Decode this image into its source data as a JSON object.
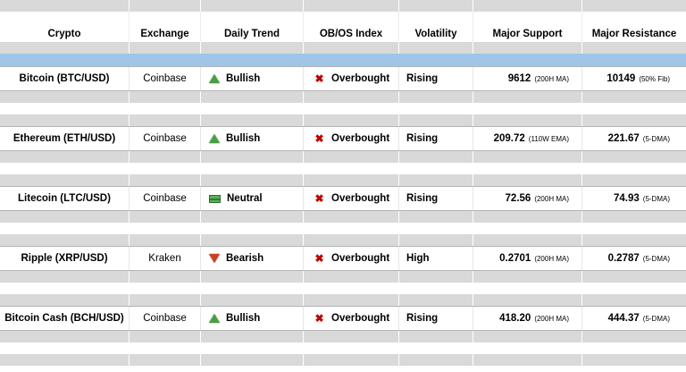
{
  "table": {
    "columns": [
      "Crypto",
      "Exchange",
      "Daily Trend",
      "OB/OS Index",
      "Volatility",
      "Major Support",
      "Major Resistance"
    ],
    "rows": [
      {
        "crypto": "Bitcoin (BTC/USD)",
        "exchange": "Coinbase",
        "trend": "Bullish",
        "trend_icon": "triangle-up-icon",
        "obos": "Overbought",
        "obos_icon": "red-x-icon",
        "volatility": "Rising",
        "support": "9612",
        "support_note": "(200H MA)",
        "resistance": "10149",
        "resistance_note": "(50% Fib)"
      },
      {
        "crypto": "Ethereum (ETH/USD)",
        "exchange": "Coinbase",
        "trend": "Bullish",
        "trend_icon": "triangle-up-icon",
        "obos": "Overbought",
        "obos_icon": "red-x-icon",
        "volatility": "Rising",
        "support": "209.72",
        "support_note": "(110W EMA)",
        "resistance": "221.67",
        "resistance_note": "(5-DMA)"
      },
      {
        "crypto": "Litecoin (LTC/USD)",
        "exchange": "Coinbase",
        "trend": "Neutral",
        "trend_icon": "neutral-bar-icon",
        "obos": "Overbought",
        "obos_icon": "red-x-icon",
        "volatility": "Rising",
        "support": "72.56",
        "support_note": "(200H MA)",
        "resistance": "74.93",
        "resistance_note": "(5-DMA)"
      },
      {
        "crypto": "Ripple (XRP/USD)",
        "exchange": "Kraken",
        "trend": "Bearish",
        "trend_icon": "triangle-down-icon",
        "obos": "Overbought",
        "obos_icon": "red-x-icon",
        "volatility": "High",
        "support": "0.2701",
        "support_note": "(200H MA)",
        "resistance": "0.2787",
        "resistance_note": "(5-DMA)"
      },
      {
        "crypto": "Bitcoin Cash (BCH/USD)",
        "exchange": "Coinbase",
        "trend": "Bullish",
        "trend_icon": "triangle-up-icon",
        "obos": "Overbought",
        "obos_icon": "red-x-icon",
        "volatility": "Rising",
        "support": "418.20",
        "support_note": "(200H MA)",
        "resistance": "444.37",
        "resistance_note": "(5-DMA)"
      }
    ]
  },
  "colors": {
    "highlight_row_blue": "#9fc5e8",
    "spacer_gray": "#d9d9d9",
    "bullish_green": "#4a9e45",
    "bearish_red": "#cc4125",
    "overbought_red": "#c00000"
  }
}
